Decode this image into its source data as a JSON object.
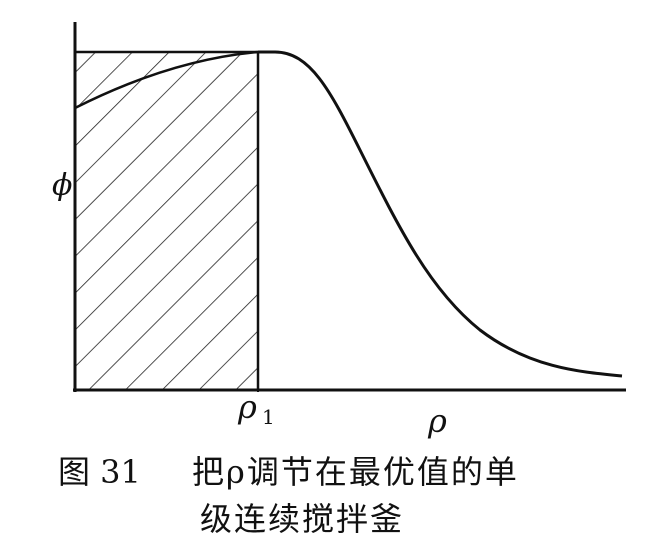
{
  "axes": {
    "y_label": "ϕ",
    "marker": "ρ",
    "marker_subscript": "1",
    "x_label": "ρ"
  },
  "caption": {
    "figure": "图 31",
    "line1": "把ρ调节在最优值的单",
    "line2": "级连续搅拌釜"
  }
}
